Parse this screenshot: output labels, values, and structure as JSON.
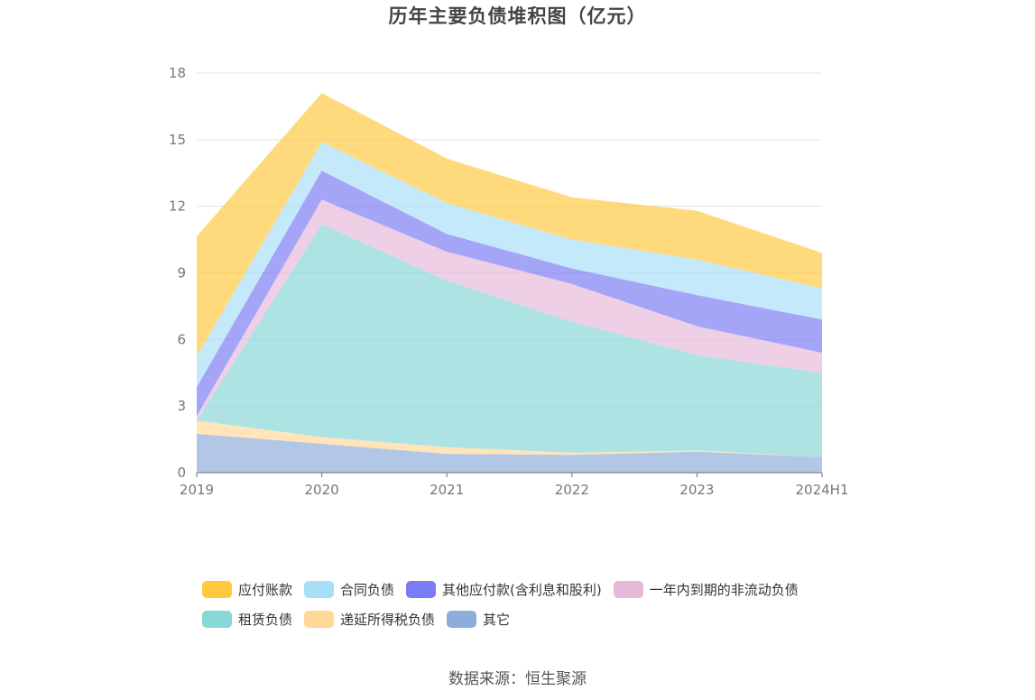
{
  "chart_data": {
    "type": "area",
    "stacked": true,
    "title": "历年主要负债堆积图（亿元）",
    "categories": [
      "2019",
      "2020",
      "2021",
      "2022",
      "2023",
      "2024H1"
    ],
    "y_ticks": [
      "0",
      "3",
      "6",
      "9",
      "12",
      "15",
      "18"
    ],
    "ylim": [
      0,
      18
    ],
    "grid": true,
    "legend_position": "bottom",
    "series": [
      {
        "name": "应付账款",
        "color": "#ffc93f",
        "values": [
          5.4,
          2.2,
          2.0,
          1.9,
          2.2,
          1.6
        ]
      },
      {
        "name": "合同负债",
        "color": "#a8dff8",
        "values": [
          1.4,
          1.3,
          1.4,
          1.3,
          1.6,
          1.4
        ]
      },
      {
        "name": "其他应付款(含利息和股利)",
        "color": "#7b7bf5",
        "values": [
          1.3,
          1.3,
          0.8,
          0.7,
          1.4,
          1.5
        ]
      },
      {
        "name": "一年内到期的非流动负债",
        "color": "#e8b8da",
        "values": [
          0.2,
          1.1,
          1.3,
          1.7,
          1.3,
          0.9
        ]
      },
      {
        "name": "租赁负债",
        "color": "#86d7d5",
        "values": [
          0.0,
          9.6,
          7.5,
          5.9,
          4.3,
          3.8
        ]
      },
      {
        "name": "递延所得税负债",
        "color": "#ffd898",
        "values": [
          0.6,
          0.3,
          0.3,
          0.1,
          0.05,
          0.0
        ]
      },
      {
        "name": "其它",
        "color": "#8dadda",
        "values": [
          1.75,
          1.3,
          0.85,
          0.8,
          0.95,
          0.7
        ]
      }
    ]
  },
  "legend_rows": [
    [
      0,
      1,
      2,
      3
    ],
    [
      4,
      5,
      6
    ]
  ],
  "source": "数据来源：恒生聚源"
}
